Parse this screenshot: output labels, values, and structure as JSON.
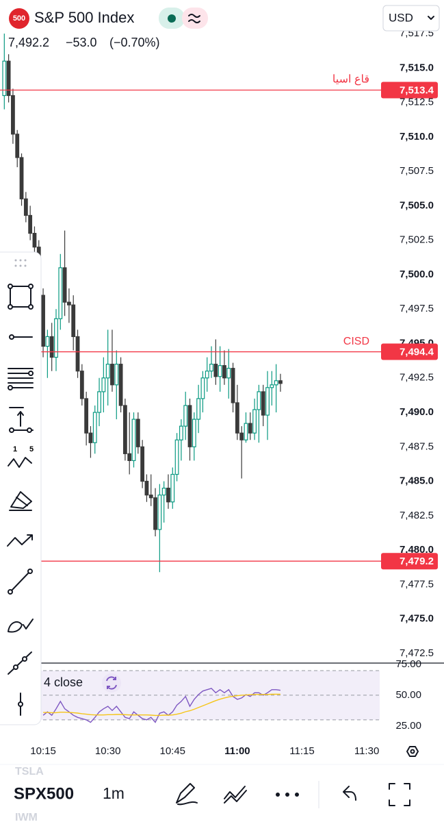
{
  "header": {
    "symbol_badge": "500",
    "title": "S&P 500 Index",
    "last": "7,492.2",
    "change": "−53.0",
    "change_pct": "(−0.70%)",
    "currency": "USD"
  },
  "toolbar": {
    "wave_labels": [
      "1",
      "5"
    ]
  },
  "bottom_bar": {
    "watch_prev": "TSLA",
    "symbol": "SPX500",
    "interval": "1m",
    "watch_next": "IWM"
  },
  "chart_data": [
    {
      "type": "candlestick",
      "up_color": "#089981",
      "down_color": "#3a3a3a",
      "line_color": "#f23645",
      "x": [
        "10:06",
        "10:07",
        "10:08",
        "10:09",
        "10:10",
        "10:11",
        "10:12",
        "10:13",
        "10:14",
        "10:15",
        "10:16",
        "10:17",
        "10:18",
        "10:19",
        "10:20",
        "10:21",
        "10:22",
        "10:23",
        "10:24",
        "10:25",
        "10:26",
        "10:27",
        "10:28",
        "10:29",
        "10:30",
        "10:31",
        "10:32",
        "10:33",
        "10:34",
        "10:35",
        "10:36",
        "10:37",
        "10:38",
        "10:39",
        "10:40",
        "10:41",
        "10:42",
        "10:43",
        "10:44",
        "10:45",
        "10:46",
        "10:47",
        "10:48",
        "10:49",
        "10:50",
        "10:51",
        "10:52",
        "10:53",
        "10:54",
        "10:55",
        "10:56",
        "10:57",
        "10:58",
        "10:59",
        "11:00",
        "11:01",
        "11:02",
        "11:03",
        "11:04",
        "11:05",
        "11:06",
        "11:07",
        "11:08",
        "11:09",
        "11:10"
      ],
      "open": [
        7513,
        7515.5,
        7513,
        7510.2,
        7508.5,
        7505.5,
        7504.3,
        7503,
        7502,
        7498.5,
        7494.8,
        7495.5,
        7494,
        7496.8,
        7500.5,
        7498,
        7497.8,
        7495.5,
        7493,
        7491,
        7488.5,
        7487.8,
        7490,
        7491.5,
        7492.5,
        7493.5,
        7492,
        7493.5,
        7490.5,
        7487,
        7486.5,
        7489.5,
        7487.5,
        7485,
        7484,
        7483.8,
        7481.5,
        7484,
        7484.5,
        7483.5,
        7485.5,
        7488,
        7489,
        7490.5,
        7487.5,
        7489.5,
        7491,
        7492.5,
        7493,
        7493.5,
        7492.6,
        7493.4,
        7492.5,
        7493.2,
        7490.7,
        7488.5,
        7488,
        7489.2,
        7488.5,
        7490.2,
        7491.5,
        7489.8,
        7491.8,
        7492,
        7492.3
      ],
      "high": [
        7517.5,
        7516,
        7513.5,
        7510.5,
        7508.8,
        7506,
        7505,
        7503.5,
        7502.5,
        7499,
        7496,
        7496.5,
        7497.5,
        7501.5,
        7503.2,
        7499,
        7498.5,
        7496,
        7493.5,
        7491.5,
        7489,
        7490.5,
        7492.5,
        7494,
        7496,
        7496,
        7494.5,
        7494,
        7491,
        7490,
        7490,
        7490,
        7488,
        7485.5,
        7485.5,
        7484.5,
        7484.8,
        7485,
        7485.5,
        7486,
        7488.5,
        7489.5,
        7491.5,
        7491,
        7490,
        7492,
        7493,
        7494,
        7494.8,
        7495.3,
        7494.8,
        7494.5,
        7494.6,
        7493.6,
        7492,
        7489,
        7490,
        7490,
        7491,
        7492,
        7492,
        7493,
        7493,
        7493.5,
        7492.8
      ],
      "low": [
        7512,
        7512.5,
        7509.5,
        7507.8,
        7505,
        7503.8,
        7502.5,
        7501.5,
        7498,
        7494,
        7492.5,
        7493,
        7493,
        7496,
        7497,
        7496.5,
        7494.5,
        7492.5,
        7490.5,
        7487.6,
        7486.7,
        7487,
        7489,
        7490,
        7490.5,
        7491.5,
        7489.5,
        7490,
        7486.5,
        7485.5,
        7486,
        7487,
        7484.5,
        7483.5,
        7483.2,
        7481,
        7478.4,
        7482,
        7483,
        7483,
        7485,
        7486.5,
        7488,
        7486.5,
        7486.5,
        7488.5,
        7490,
        7491.5,
        7492.5,
        7492,
        7491.5,
        7492,
        7491,
        7490,
        7488,
        7485.2,
        7487.8,
        7488,
        7488,
        7487.8,
        7489,
        7488,
        7490.5,
        7490,
        7491.5
      ],
      "close": [
        7515.5,
        7513,
        7510.2,
        7508.5,
        7505.5,
        7504.3,
        7503,
        7502,
        7498.5,
        7494.8,
        7495.5,
        7494,
        7496.8,
        7500.5,
        7498,
        7497.8,
        7495.5,
        7493,
        7491,
        7488.5,
        7487.8,
        7490,
        7491.5,
        7492.5,
        7493.5,
        7492,
        7493.5,
        7490.5,
        7487,
        7486.5,
        7489.5,
        7487.5,
        7485,
        7484,
        7483.8,
        7481.5,
        7484,
        7484.5,
        7483.5,
        7485.5,
        7488,
        7489,
        7490.5,
        7487.5,
        7489.5,
        7491,
        7492.5,
        7493,
        7493.5,
        7492.6,
        7493.4,
        7492.5,
        7493.2,
        7490.7,
        7488.5,
        7488,
        7489.2,
        7488.5,
        7490.2,
        7491.5,
        7489.8,
        7491.8,
        7492,
        7492.3,
        7492.1
      ],
      "xlim": [
        "10:05",
        "11:33"
      ],
      "xticks": [
        "10:15",
        "10:30",
        "10:45",
        "11:00",
        "11:15",
        "11:30"
      ],
      "ylim": [
        7471.8,
        7517.7
      ],
      "yticks": [
        {
          "value": 7517.5,
          "label": "7,517.5"
        },
        {
          "value": 7515,
          "label": "7,515.0"
        },
        {
          "value": 7512.5,
          "label": "7,512.5"
        },
        {
          "value": 7510,
          "label": "7,510.0"
        },
        {
          "value": 7507.5,
          "label": "7,507.5"
        },
        {
          "value": 7505,
          "label": "7,505.0"
        },
        {
          "value": 7502.5,
          "label": "7,502.5"
        },
        {
          "value": 7500,
          "label": "7,500.0"
        },
        {
          "value": 7497.5,
          "label": "7,497.5"
        },
        {
          "value": 7495,
          "label": "7,495.0"
        },
        {
          "value": 7492.5,
          "label": "7,492.5"
        },
        {
          "value": 7490,
          "label": "7,490.0"
        },
        {
          "value": 7487.5,
          "label": "7,487.5"
        },
        {
          "value": 7485,
          "label": "7,485.0"
        },
        {
          "value": 7482.5,
          "label": "7,482.5"
        },
        {
          "value": 7480,
          "label": "7,480.0"
        },
        {
          "value": 7477.5,
          "label": "7,477.5"
        },
        {
          "value": 7475,
          "label": "7,475.0"
        },
        {
          "value": 7472.5,
          "label": "7,472.5"
        }
      ],
      "lines": [
        {
          "value": 7513.4,
          "label": "7,513.4",
          "note": "قاع اسيا"
        },
        {
          "value": 7494.4,
          "label": "7,494.4",
          "note": "CISD"
        },
        {
          "value": 7479.2,
          "label": "7,479.2"
        }
      ]
    },
    {
      "type": "line",
      "legend_label": "4 close",
      "ylim": [
        13.8,
        76.1
      ],
      "yticks": [
        {
          "value": 75,
          "label": "75.00"
        },
        {
          "value": 50,
          "label": "50.00"
        },
        {
          "value": 25,
          "label": "25.00"
        }
      ],
      "levels": [
        70,
        50,
        30
      ],
      "series": [
        {
          "color": "#7e57c2",
          "values": [
            null,
            null,
            null,
            null,
            null,
            null,
            null,
            null,
            null,
            33.7,
            36.5,
            33.7,
            39,
            45,
            39,
            36.5,
            33.7,
            32,
            31,
            30,
            28,
            32,
            36.5,
            39,
            41,
            37.6,
            41,
            36.5,
            32,
            31,
            36.5,
            33.7,
            31,
            30,
            32,
            28,
            35.4,
            36.5,
            33.7,
            36.5,
            42,
            45,
            49,
            41,
            46.6,
            50.5,
            53.4,
            54.5,
            55.6,
            52,
            54.5,
            52,
            54.5,
            49,
            46.6,
            47.8,
            50.5,
            49,
            52,
            52,
            50,
            52,
            54.5,
            54.5,
            54
          ]
        },
        {
          "color": "#f5c518",
          "values": [
            null,
            null,
            null,
            null,
            null,
            null,
            null,
            null,
            null,
            36,
            36,
            35.8,
            35.8,
            36.2,
            36.2,
            36,
            35.8,
            35.5,
            35,
            34.6,
            34.2,
            34,
            34,
            34,
            34.2,
            34.2,
            34.4,
            34.4,
            34.2,
            34,
            34,
            34,
            34,
            34,
            33.8,
            33.6,
            33.6,
            33.8,
            33.8,
            34,
            34.6,
            35.4,
            36.6,
            37.4,
            38.6,
            40,
            41.4,
            42.8,
            44.2,
            45.6,
            46.8,
            47.8,
            48.6,
            49.2,
            49.6,
            50,
            50.2,
            50.4,
            50.6,
            50.6,
            50.6,
            50.6,
            50.8,
            50.8,
            50.8
          ]
        }
      ]
    }
  ]
}
